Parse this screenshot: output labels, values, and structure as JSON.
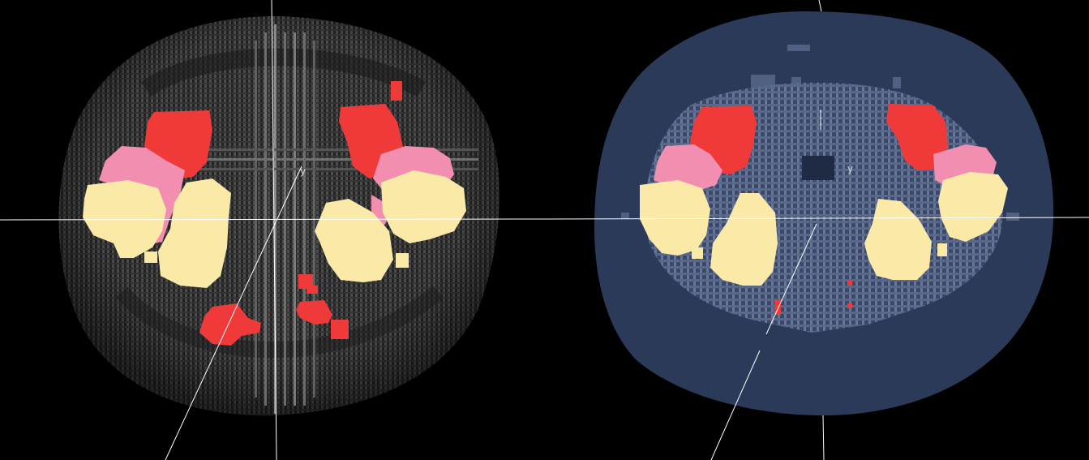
{
  "views": [
    {
      "id": "left",
      "style": "grey voxel body, no fill",
      "axis_label": "y"
    },
    {
      "id": "right",
      "style": "navy filled body outline",
      "axis_label": "y"
    }
  ],
  "colors": {
    "background": "#000000",
    "body_grey": "#6f6f6f",
    "body_navy": "#2c3a5a",
    "lesion_red": "#f03a3a",
    "tissue_pink": "#f28fb0",
    "bone_cream": "#fbe9a8",
    "axis": "#ffffff"
  }
}
